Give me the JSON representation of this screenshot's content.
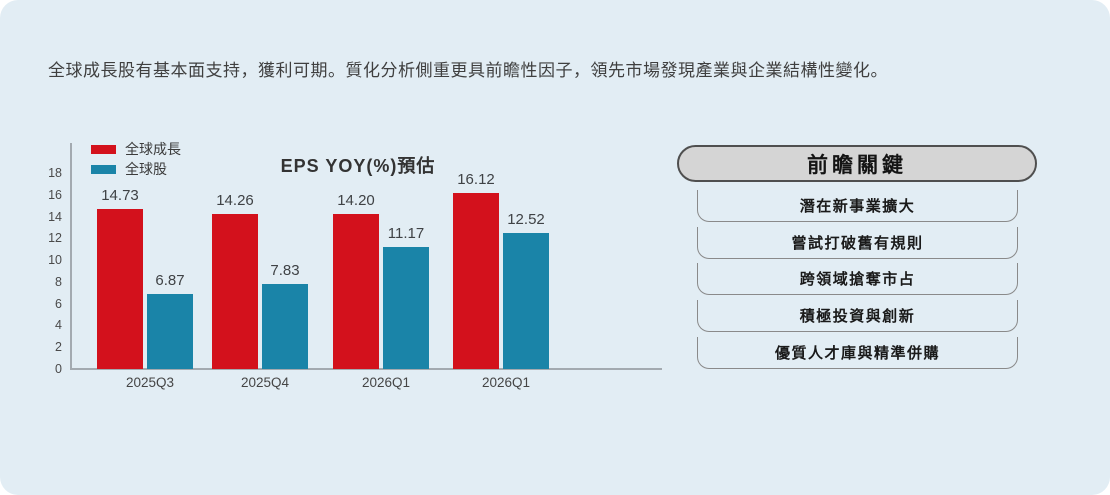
{
  "intro": {
    "text": "全球成長股有基本面支持，獲利可期。質化分析側重更具前瞻性因子，領先市場發現產業與企業結構性變化。"
  },
  "chart_data": {
    "type": "bar",
    "title": "EPS YOY(%)預估",
    "categories": [
      "2025Q3",
      "2025Q4",
      "2026Q1",
      "2026Q1"
    ],
    "series": [
      {
        "name": "全球成長",
        "color": "#d3111c",
        "values": [
          14.73,
          14.26,
          14.2,
          16.12
        ]
      },
      {
        "name": "全球股",
        "color": "#1a84a8",
        "values": [
          6.87,
          7.83,
          11.17,
          12.52
        ]
      }
    ],
    "ylim": [
      0,
      18
    ],
    "yticks": [
      0,
      2,
      4,
      6,
      8,
      10,
      12,
      14,
      16,
      18
    ],
    "grid": false,
    "legend_position": "top-left",
    "value_labels": true,
    "xlabel": "",
    "ylabel": "",
    "axis_color": "#a3aab0",
    "value_label_color": "#3f4245"
  },
  "panel": {
    "title": "前瞻關鍵",
    "items": [
      "潛在新事業擴大",
      "嘗試打破舊有規則",
      "跨領域搶奪市占",
      "積極投資與創新",
      "優質人才庫與精準併購"
    ],
    "header_bg": "#d5d5d5",
    "header_border": "#4f4f4f",
    "item_border": "#8a8a8a"
  },
  "colors": {
    "page_bg": "#ffffff",
    "card_bg": "#e2edf4",
    "text": "#3f3f3f"
  }
}
